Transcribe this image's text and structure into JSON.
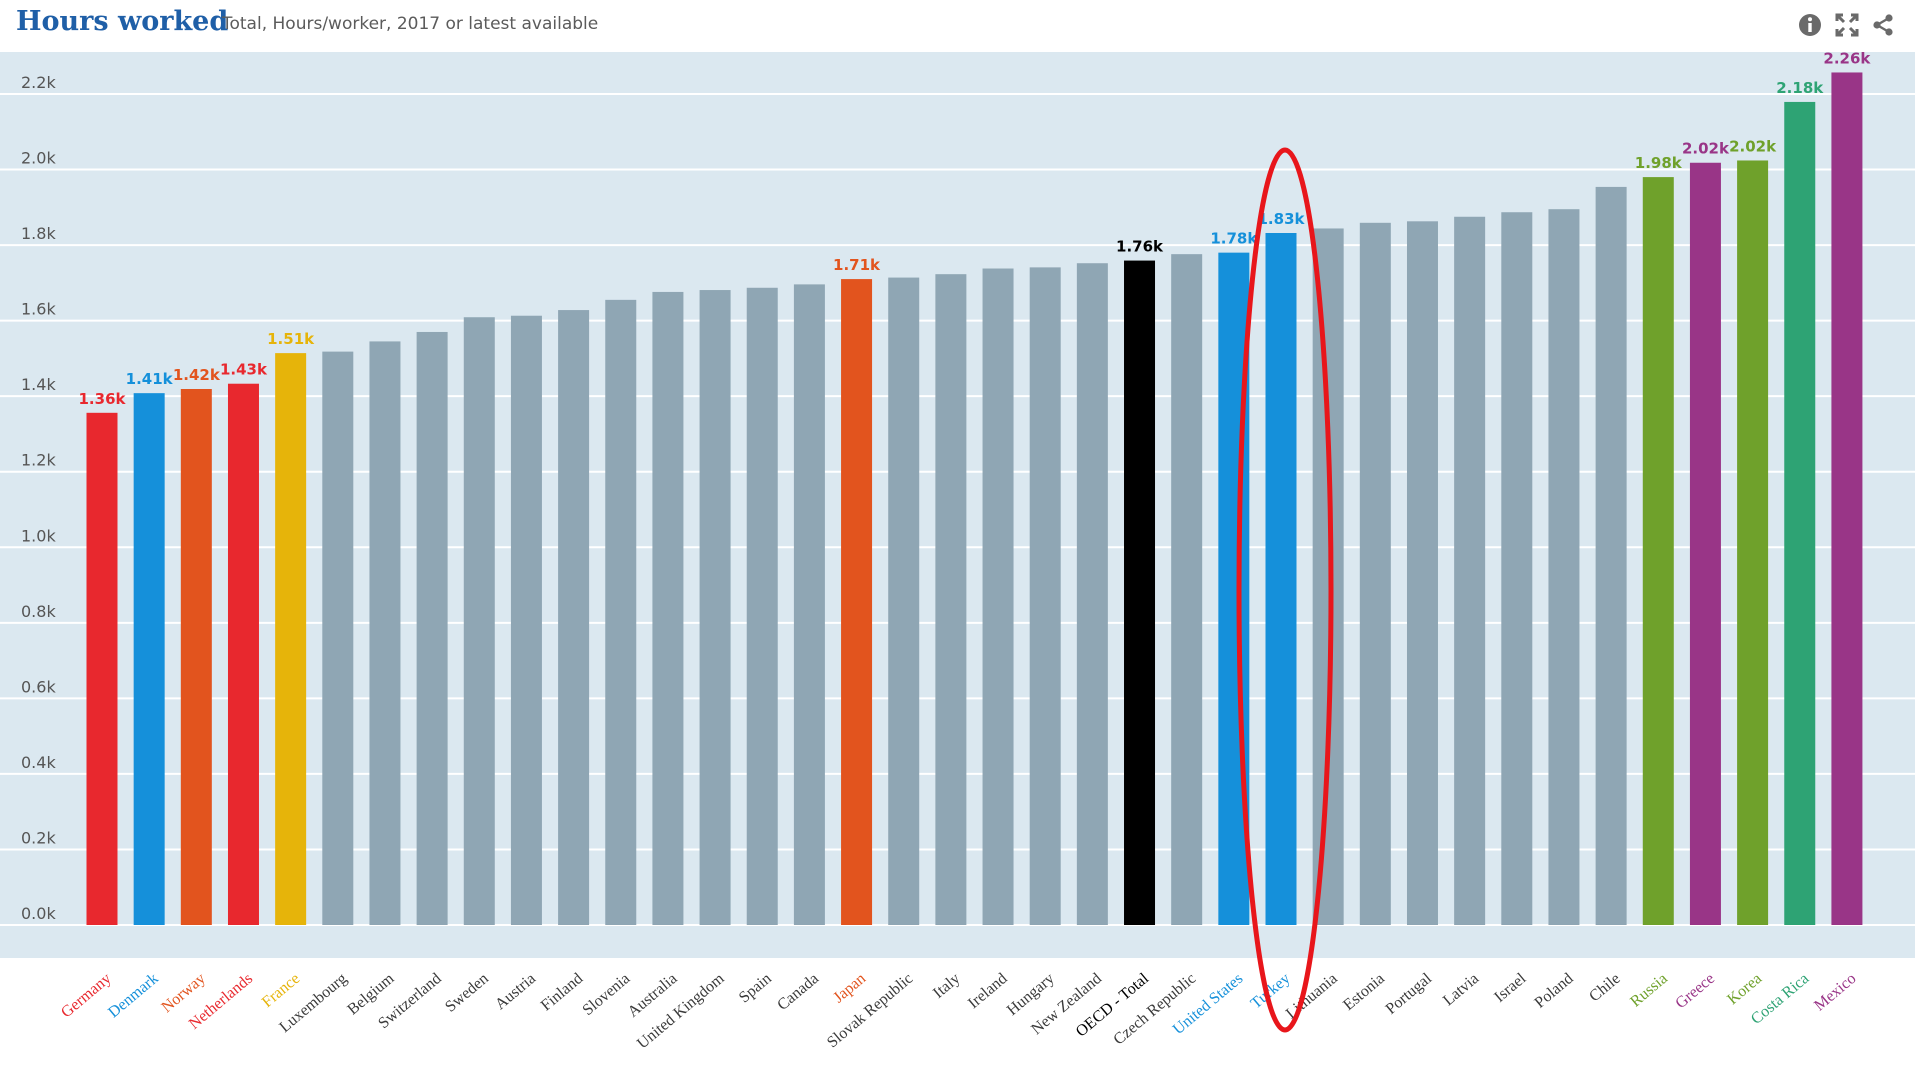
{
  "header": {
    "title": "Hours worked",
    "subtitle": "Total, Hours/worker, 2017 or latest available",
    "icons": [
      "info-icon",
      "fullscreen-icon",
      "share-icon"
    ]
  },
  "colors": {
    "background_plot": "#dbe8f0",
    "default_bar": "#8fa6b4",
    "highlight_ellipse": "#e8161b"
  },
  "chart_data": {
    "type": "bar",
    "title": "Hours worked",
    "subtitle": "Total, Hours/worker, 2017 or latest available",
    "xlabel": "",
    "ylabel": "",
    "ylim": [
      0,
      2250
    ],
    "yticks": [
      0,
      200,
      400,
      600,
      800,
      1000,
      1200,
      1400,
      1600,
      1800,
      2000,
      2200
    ],
    "ytick_labels": [
      "0.0k",
      "0.2k",
      "0.4k",
      "0.6k",
      "0.8k",
      "1.0k",
      "1.2k",
      "1.4k",
      "1.6k",
      "1.8k",
      "2.0k",
      "2.2k"
    ],
    "grid": true,
    "legend": "none",
    "highlighted_category": "Turkey",
    "bars": [
      {
        "country": "Germany",
        "value": 1356,
        "color": "#e8282e",
        "label": "1.36k"
      },
      {
        "country": "Denmark",
        "value": 1408,
        "color": "#1590da",
        "label": "1.41k"
      },
      {
        "country": "Norway",
        "value": 1419,
        "color": "#e2541e",
        "label": "1.42k"
      },
      {
        "country": "Netherlands",
        "value": 1433,
        "color": "#e8282e",
        "label": "1.43k"
      },
      {
        "country": "France",
        "value": 1514,
        "color": "#e6b40a",
        "label": "1.51k"
      },
      {
        "country": "Luxembourg",
        "value": 1518,
        "color": "#8fa6b4",
        "label": ""
      },
      {
        "country": "Belgium",
        "value": 1545,
        "color": "#8fa6b4",
        "label": ""
      },
      {
        "country": "Switzerland",
        "value": 1570,
        "color": "#8fa6b4",
        "label": ""
      },
      {
        "country": "Sweden",
        "value": 1609,
        "color": "#8fa6b4",
        "label": ""
      },
      {
        "country": "Austria",
        "value": 1613,
        "color": "#8fa6b4",
        "label": ""
      },
      {
        "country": "Finland",
        "value": 1628,
        "color": "#8fa6b4",
        "label": ""
      },
      {
        "country": "Slovenia",
        "value": 1655,
        "color": "#8fa6b4",
        "label": ""
      },
      {
        "country": "Australia",
        "value": 1676,
        "color": "#8fa6b4",
        "label": ""
      },
      {
        "country": "United Kingdom",
        "value": 1681,
        "color": "#8fa6b4",
        "label": ""
      },
      {
        "country": "Spain",
        "value": 1687,
        "color": "#8fa6b4",
        "label": ""
      },
      {
        "country": "Canada",
        "value": 1696,
        "color": "#8fa6b4",
        "label": ""
      },
      {
        "country": "Japan",
        "value": 1710,
        "color": "#e2541e",
        "label": "1.71k"
      },
      {
        "country": "Slovak Republic",
        "value": 1714,
        "color": "#8fa6b4",
        "label": ""
      },
      {
        "country": "Italy",
        "value": 1723,
        "color": "#8fa6b4",
        "label": ""
      },
      {
        "country": "Ireland",
        "value": 1738,
        "color": "#8fa6b4",
        "label": ""
      },
      {
        "country": "Hungary",
        "value": 1741,
        "color": "#8fa6b4",
        "label": ""
      },
      {
        "country": "New Zealand",
        "value": 1752,
        "color": "#8fa6b4",
        "label": ""
      },
      {
        "country": "OECD - Total",
        "value": 1759,
        "color": "#000000",
        "label": "1.76k"
      },
      {
        "country": "Czech Republic",
        "value": 1776,
        "color": "#8fa6b4",
        "label": ""
      },
      {
        "country": "United States",
        "value": 1780,
        "color": "#1590da",
        "label": "1.78k"
      },
      {
        "country": "Turkey",
        "value": 1832,
        "color": "#1590da",
        "label": "1.83k"
      },
      {
        "country": "Lithuania",
        "value": 1844,
        "color": "#8fa6b4",
        "label": ""
      },
      {
        "country": "Estonia",
        "value": 1859,
        "color": "#8fa6b4",
        "label": ""
      },
      {
        "country": "Portugal",
        "value": 1863,
        "color": "#8fa6b4",
        "label": ""
      },
      {
        "country": "Latvia",
        "value": 1875,
        "color": "#8fa6b4",
        "label": ""
      },
      {
        "country": "Israel",
        "value": 1887,
        "color": "#8fa6b4",
        "label": ""
      },
      {
        "country": "Poland",
        "value": 1895,
        "color": "#8fa6b4",
        "label": ""
      },
      {
        "country": "Chile",
        "value": 1954,
        "color": "#8fa6b4",
        "label": ""
      },
      {
        "country": "Russia",
        "value": 1980,
        "color": "#6fa12b",
        "label": "1.98k"
      },
      {
        "country": "Greece",
        "value": 2018,
        "color": "#993587",
        "label": "2.02k"
      },
      {
        "country": "Korea",
        "value": 2024,
        "color": "#6fa12b",
        "label": "2.02k"
      },
      {
        "country": "Costa Rica",
        "value": 2179,
        "color": "#2ea374",
        "label": "2.18k"
      },
      {
        "country": "Mexico",
        "value": 2257,
        "color": "#993587",
        "label": "2.26k"
      }
    ],
    "label_colors": {
      "Germany": "#e8282e",
      "Denmark": "#1590da",
      "Norway": "#e2541e",
      "Netherlands": "#e8282e",
      "France": "#e6b40a",
      "Japan": "#e2541e",
      "OECD - Total": "#000000",
      "United States": "#1590da",
      "Turkey": "#1590da",
      "Russia": "#6fa12b",
      "Greece": "#993587",
      "Korea": "#6fa12b",
      "Costa Rica": "#2ea374",
      "Mexico": "#993587",
      "default": "#3a3a3a"
    }
  }
}
